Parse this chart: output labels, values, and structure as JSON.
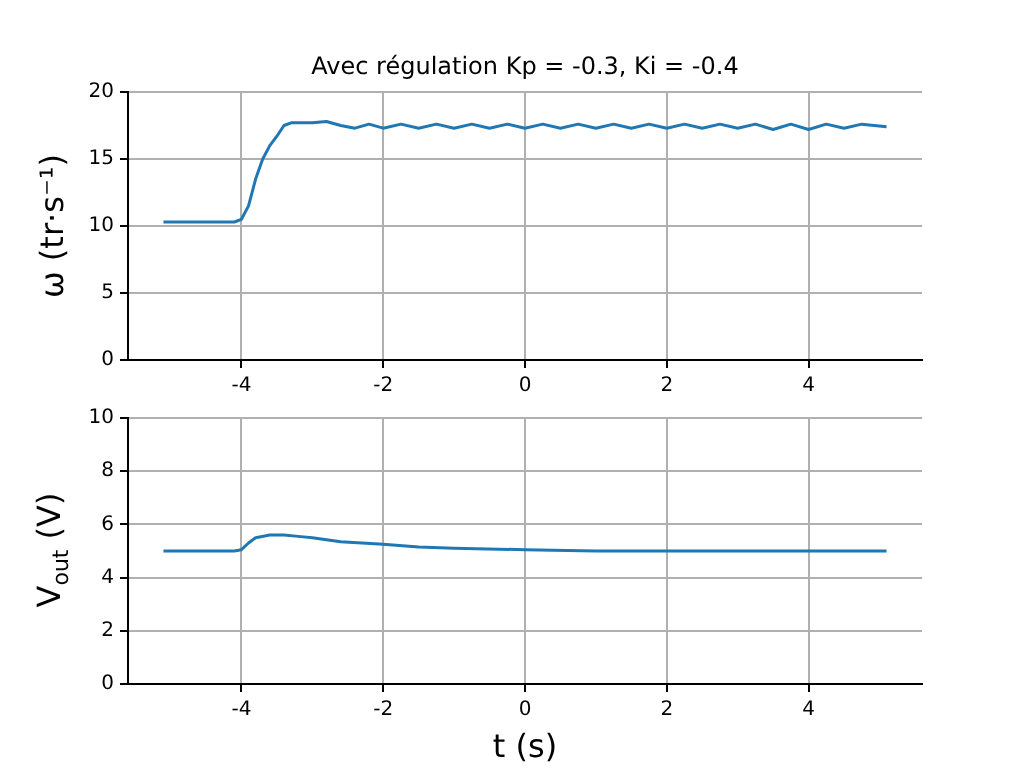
{
  "chart_data": [
    {
      "type": "line",
      "title": "Avec régulation Kp = -0.3, Ki = -0.4",
      "ylabel": "ω (tr·s⁻¹)",
      "x": [
        -5.1,
        -4.5,
        -4.1,
        -4.0,
        -3.9,
        -3.8,
        -3.7,
        -3.6,
        -3.5,
        -3.4,
        -3.3,
        -3.0,
        -2.8,
        -2.6,
        -2.4,
        -2.2,
        -2.0,
        -1.75,
        -1.5,
        -1.25,
        -1.0,
        -0.75,
        -0.5,
        -0.25,
        0,
        0.25,
        0.5,
        0.75,
        1.0,
        1.25,
        1.5,
        1.75,
        2.0,
        2.25,
        2.5,
        2.75,
        3.0,
        3.25,
        3.5,
        3.75,
        4.0,
        4.25,
        4.5,
        4.75,
        5.1
      ],
      "series": [
        {
          "color": "#1f77b4",
          "values": [
            10.3,
            10.3,
            10.3,
            10.5,
            11.5,
            13.5,
            15.0,
            16.0,
            16.7,
            17.5,
            17.7,
            17.7,
            17.8,
            17.5,
            17.3,
            17.6,
            17.3,
            17.6,
            17.3,
            17.6,
            17.3,
            17.6,
            17.3,
            17.6,
            17.3,
            17.6,
            17.3,
            17.6,
            17.3,
            17.6,
            17.3,
            17.6,
            17.3,
            17.6,
            17.3,
            17.6,
            17.3,
            17.6,
            17.2,
            17.6,
            17.2,
            17.6,
            17.3,
            17.6,
            17.4
          ]
        }
      ],
      "xlim": [
        -5.6,
        5.6
      ],
      "xticks": [
        -4,
        -2,
        0,
        2,
        4
      ],
      "ylim": [
        0,
        20
      ],
      "yticks": [
        0,
        5,
        10,
        15,
        20
      ],
      "grid": true,
      "marker": "none",
      "line_style": "solid"
    },
    {
      "type": "line",
      "xlabel": "t (s)",
      "ylabel": "V$_{out}$ (V)",
      "x": [
        -5.1,
        -4.1,
        -4.0,
        -3.9,
        -3.8,
        -3.6,
        -3.4,
        -3.2,
        -3.0,
        -2.6,
        -2.0,
        -1.5,
        -1.0,
        0,
        1.0,
        5.1
      ],
      "series": [
        {
          "color": "#1f77b4",
          "values": [
            5.0,
            5.0,
            5.05,
            5.3,
            5.5,
            5.6,
            5.6,
            5.55,
            5.5,
            5.35,
            5.25,
            5.15,
            5.1,
            5.05,
            5.0,
            5.0
          ]
        }
      ],
      "xlim": [
        -5.6,
        5.6
      ],
      "xticks": [
        -4,
        -2,
        0,
        2,
        4
      ],
      "ylim": [
        0,
        10
      ],
      "yticks": [
        0,
        2,
        4,
        6,
        8,
        10
      ],
      "grid": true,
      "marker": "none",
      "line_style": "solid"
    }
  ]
}
